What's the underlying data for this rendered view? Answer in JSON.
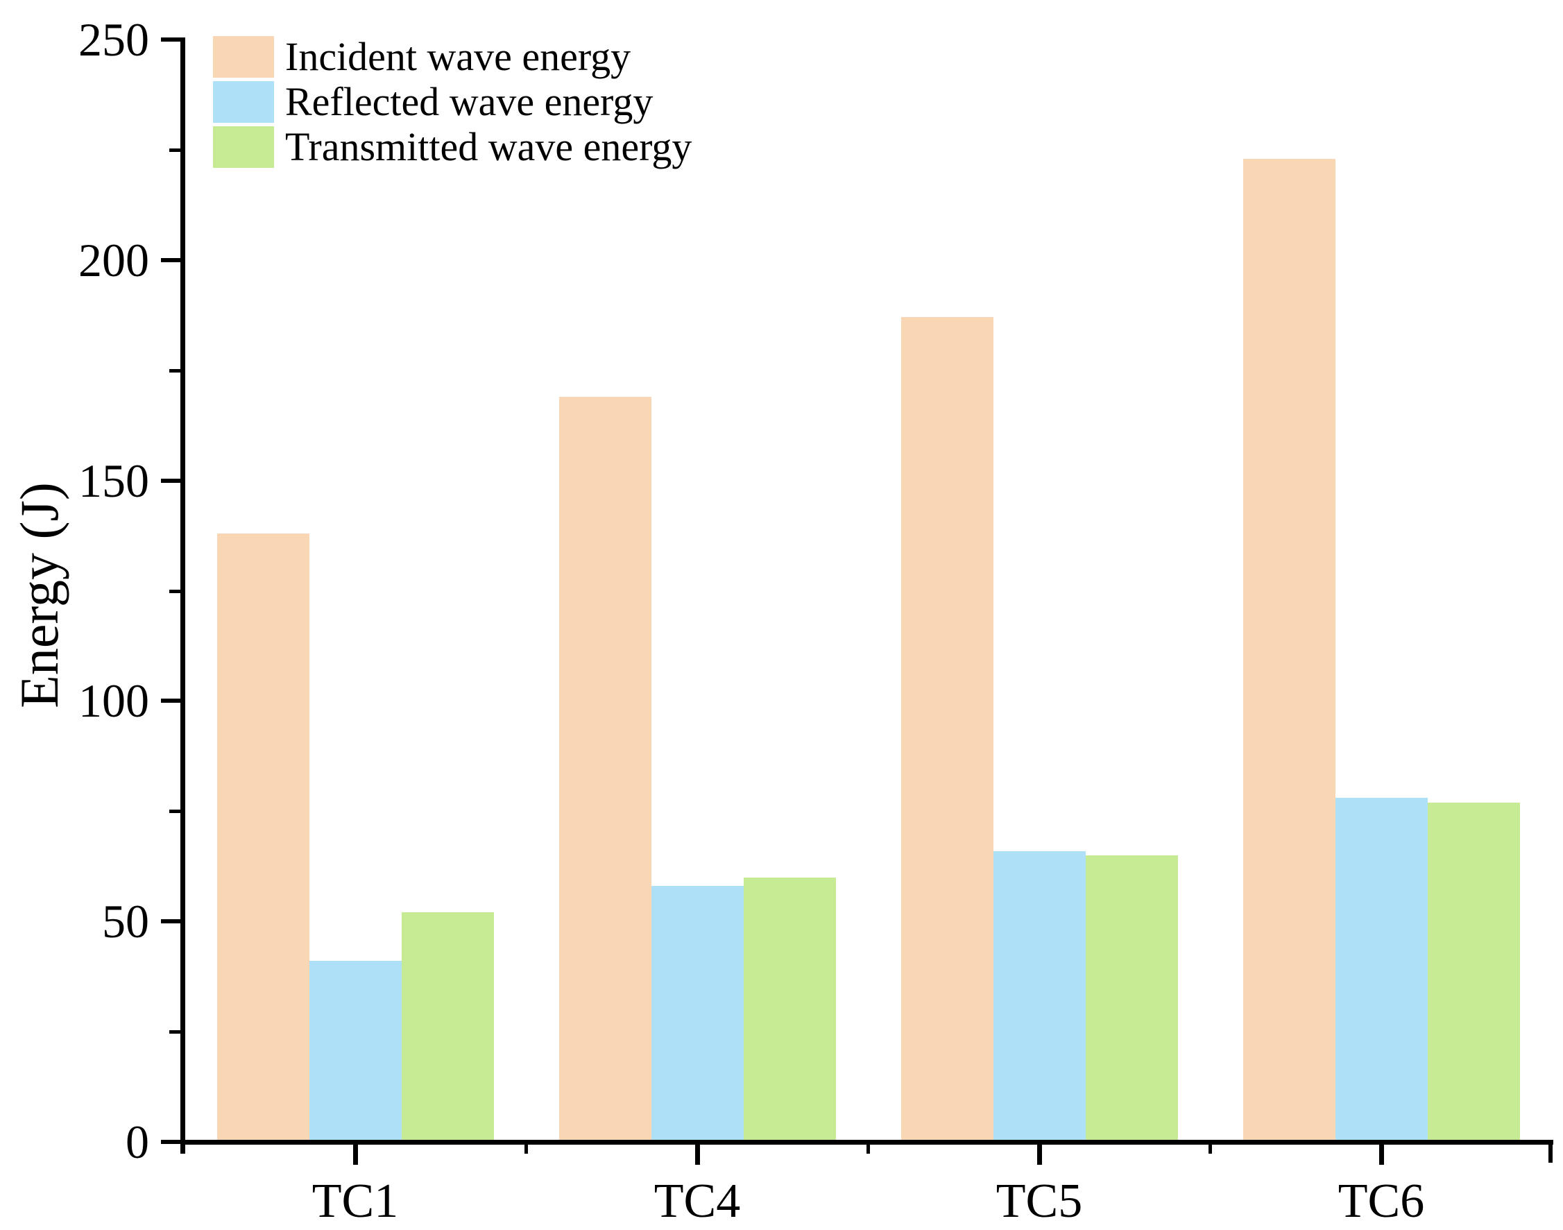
{
  "figure": {
    "background": "#ffffff",
    "text_color": "#000000",
    "axis_color": "#000000"
  },
  "chart_data": {
    "type": "bar",
    "title": "",
    "xlabel": "",
    "ylabel": "Energy (J)",
    "categories": [
      "TC1",
      "TC4",
      "TC5",
      "TC6"
    ],
    "series": [
      {
        "name": "Incident wave energy",
        "color": "#F9D6B4",
        "values": [
          138,
          169,
          187,
          223
        ]
      },
      {
        "name": "Reflected wave energy",
        "color": "#AEE0F8",
        "values": [
          41,
          58,
          66,
          78
        ]
      },
      {
        "name": "Transmitted wave energy",
        "color": "#C7EB95",
        "values": [
          52,
          60,
          65,
          77
        ]
      }
    ],
    "ylim": [
      0,
      250
    ],
    "y_major_ticks": [
      0,
      50,
      100,
      150,
      200,
      250
    ],
    "y_minor_ticks": [
      25,
      75,
      125,
      175,
      225
    ],
    "grid": false,
    "legend_position": "top-left",
    "bar_borders": false,
    "tick_style": "outside"
  }
}
